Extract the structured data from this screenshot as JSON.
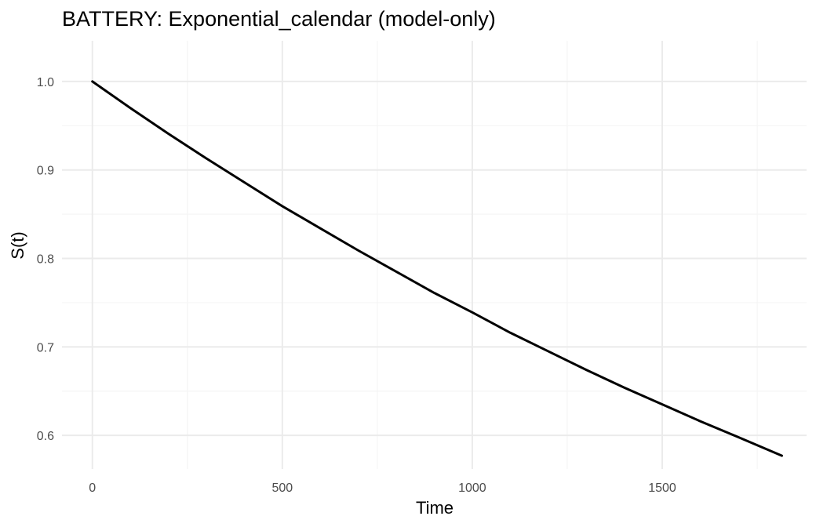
{
  "chart_data": {
    "type": "line",
    "title": "BATTERY: Exponential_calendar (model-only)",
    "xlabel": "Time",
    "ylabel": "S(t)",
    "xlim": [
      -80,
      1880
    ],
    "ylim": [
      0.562,
      1.046
    ],
    "x_ticks": [
      0,
      500,
      1000,
      1500
    ],
    "x_tick_labels": [
      "0",
      "500",
      "1000",
      "1500"
    ],
    "x_minor_ticks": [
      250,
      750,
      1250,
      1750
    ],
    "y_ticks": [
      0.6,
      0.7,
      0.8,
      0.9,
      1.0
    ],
    "y_tick_labels": [
      "0.6",
      "0.7",
      "0.8",
      "0.9",
      "1.0"
    ],
    "y_minor_ticks": [
      0.55,
      0.65,
      0.75,
      0.85,
      0.95,
      1.05
    ],
    "grid": true,
    "legend": "none",
    "series": [
      {
        "color": "#000000",
        "x": [
          0,
          100,
          200,
          300,
          400,
          500,
          600,
          700,
          800,
          900,
          1000,
          1100,
          1200,
          1300,
          1400,
          1500,
          1600,
          1700,
          1815
        ],
        "y": [
          1.0,
          0.97,
          0.941,
          0.913,
          0.886,
          0.859,
          0.834,
          0.809,
          0.785,
          0.761,
          0.739,
          0.716,
          0.695,
          0.674,
          0.654,
          0.635,
          0.616,
          0.598,
          0.577
        ]
      }
    ]
  }
}
